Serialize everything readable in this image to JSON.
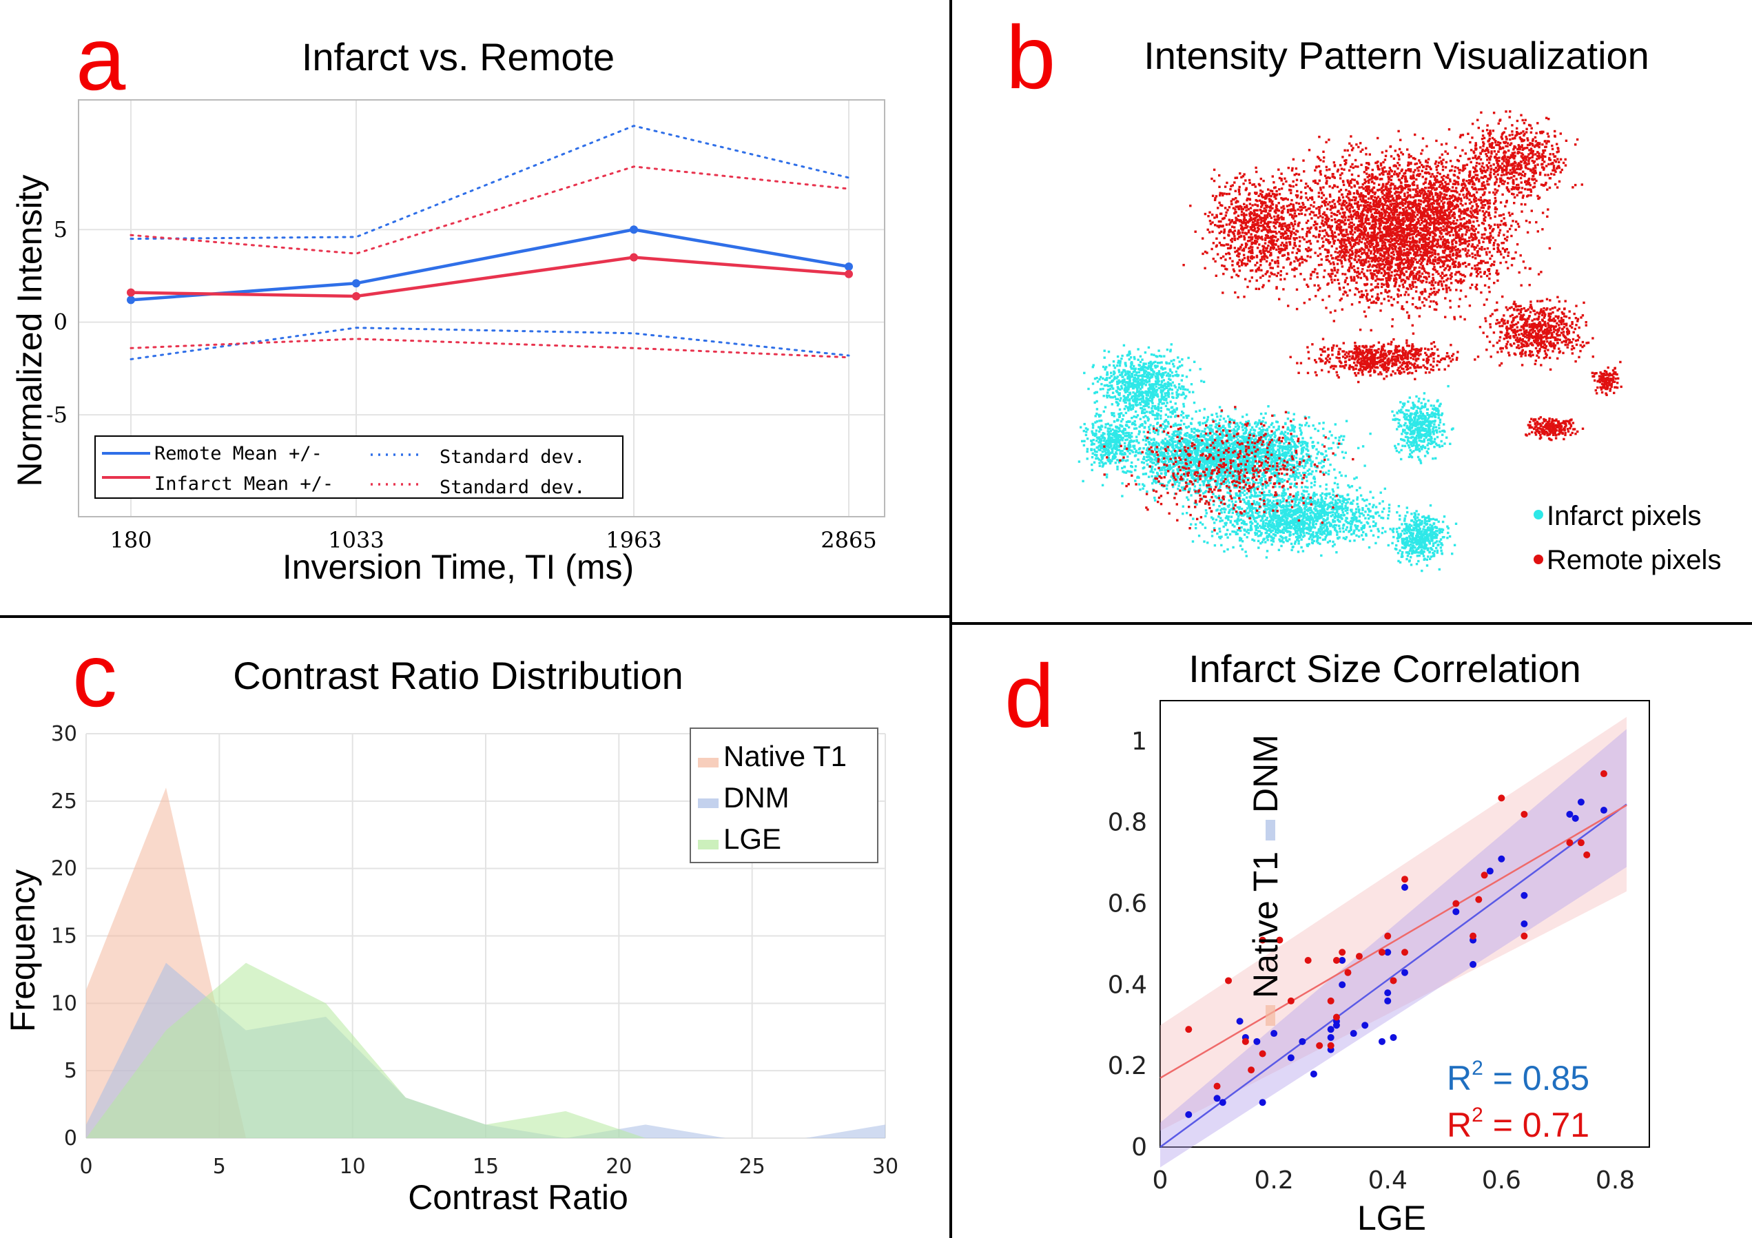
{
  "panel_letters": [
    "a",
    "b",
    "c",
    "d"
  ],
  "colors": {
    "remote_blue": "#2f6fe8",
    "infarct_red": "#e8334e",
    "tsne_infarct": "#2ee8e8",
    "tsne_remote": "#e01010",
    "native_t1": "#f4b9a0",
    "dnm": "#a9bde6",
    "lge": "#b7eaa0",
    "r2_blue": "#1f6fc0",
    "r2_red": "#e01010"
  },
  "chart_data": [
    {
      "panel": "a",
      "type": "line",
      "title": "Infarct vs. Remote",
      "xlabel": "Inversion Time, TI (ms)",
      "ylabel": "Normalized Intensity",
      "categories": [
        "180",
        "1033",
        "1963",
        "2865"
      ],
      "y_ticks": [
        "-5",
        "0",
        "5"
      ],
      "ylim": [
        -10.5,
        12
      ],
      "grid": true,
      "series": [
        {
          "name": "Remote Mean +/-",
          "style": "solid",
          "color": "#2f6fe8",
          "values": [
            1.2,
            2.1,
            5.0,
            3.0
          ]
        },
        {
          "name": "Infarct Mean +/-",
          "style": "solid",
          "color": "#e8334e",
          "values": [
            1.6,
            1.4,
            3.5,
            2.6
          ]
        },
        {
          "name": "Standard dev.",
          "style": "dotted",
          "color": "#2f6fe8",
          "values": [
            4.5,
            4.6,
            10.6,
            7.8
          ]
        },
        {
          "name": "",
          "style": "dotted",
          "color": "#2f6fe8",
          "values": [
            -2.0,
            -0.3,
            -0.6,
            -1.8
          ]
        },
        {
          "name": "Standard dev.",
          "style": "dotted",
          "color": "#e8334e",
          "values": [
            4.7,
            3.7,
            8.4,
            7.2
          ]
        },
        {
          "name": "",
          "style": "dotted",
          "color": "#e8334e",
          "values": [
            -1.4,
            -0.9,
            -1.4,
            -1.9
          ]
        }
      ],
      "legend": {
        "placement": "bottom-left",
        "entries": [
          "Remote Mean +/-",
          "Standard dev.",
          "Infarct Mean +/-",
          "Standard dev."
        ]
      }
    },
    {
      "panel": "b",
      "type": "scatter",
      "title": "Intensity Pattern Visualization",
      "legend": {
        "placement": "bottom-right",
        "entries": [
          "Infarct pixels",
          "Remote pixels"
        ]
      },
      "clusters": [
        {
          "name": "Remote pixels",
          "color": "#e01010",
          "region": "upper-right",
          "approx_points": 9000
        },
        {
          "name": "Infarct pixels",
          "color": "#2ee8e8",
          "region": "lower-left",
          "approx_points": 9000
        }
      ]
    },
    {
      "panel": "c",
      "type": "area",
      "title": "Contrast Ratio Distribution",
      "xlabel": "Contrast Ratio",
      "ylabel": "Frequency",
      "x": [
        0,
        3,
        6,
        9,
        12,
        15,
        18,
        21,
        24,
        27,
        30
      ],
      "x_ticks": [
        "0",
        "5",
        "10",
        "15",
        "20",
        "25",
        "30"
      ],
      "y_ticks": [
        "0",
        "5",
        "10",
        "15",
        "20",
        "25",
        "30"
      ],
      "xlim": [
        0,
        30
      ],
      "ylim": [
        0,
        30
      ],
      "grid": true,
      "series": [
        {
          "name": "Native T1",
          "color": "#f4b9a0",
          "values": [
            11,
            26,
            0,
            0,
            0,
            0,
            0,
            0,
            0,
            0,
            0
          ]
        },
        {
          "name": "DNM",
          "color": "#a9bde6",
          "values": [
            1,
            13,
            8,
            9,
            3,
            1,
            0,
            1,
            0,
            0,
            1
          ]
        },
        {
          "name": "LGE",
          "color": "#b7eaa0",
          "values": [
            0,
            8,
            13,
            10,
            3,
            1,
            2,
            0,
            0,
            0,
            0
          ]
        }
      ],
      "legend": {
        "placement": "top-right",
        "entries": [
          "Native T1",
          "DNM",
          "LGE"
        ]
      }
    },
    {
      "panel": "d",
      "type": "scatter",
      "title": "Infarct Size Correlation",
      "xlabel": "LGE",
      "ylabel_parts": [
        "Native T1",
        "DNM"
      ],
      "x_ticks": [
        "0",
        "0.2",
        "0.4",
        "0.6",
        "0.8"
      ],
      "y_ticks": [
        "0",
        "0.2",
        "0.4",
        "0.6",
        "0.8",
        "1"
      ],
      "xlim": [
        0,
        0.86
      ],
      "ylim": [
        0,
        1.1
      ],
      "annotations": [
        {
          "label": "R",
          "sup": "2",
          "value": " = 0.85",
          "color": "#1f6fc0"
        },
        {
          "label": "R",
          "sup": "2",
          "value": " = 0.71",
          "color": "#e01010"
        }
      ],
      "series": [
        {
          "name": "DNM",
          "color": "#1010e0",
          "fit": {
            "intercept": 0.0,
            "slope": 1.03
          },
          "band": {
            "low_at_0": -0.05,
            "high_at_0": 0.06,
            "low_at_max": 0.69,
            "high_at_max": 1.03
          },
          "points": [
            [
              0.05,
              0.08
            ],
            [
              0.1,
              0.12
            ],
            [
              0.11,
              0.11
            ],
            [
              0.14,
              0.31
            ],
            [
              0.15,
              0.27
            ],
            [
              0.17,
              0.26
            ],
            [
              0.18,
              0.11
            ],
            [
              0.2,
              0.28
            ],
            [
              0.23,
              0.22
            ],
            [
              0.25,
              0.26
            ],
            [
              0.27,
              0.18
            ],
            [
              0.3,
              0.24
            ],
            [
              0.3,
              0.27
            ],
            [
              0.3,
              0.29
            ],
            [
              0.31,
              0.3
            ],
            [
              0.31,
              0.31
            ],
            [
              0.32,
              0.46
            ],
            [
              0.32,
              0.4
            ],
            [
              0.34,
              0.28
            ],
            [
              0.36,
              0.3
            ],
            [
              0.39,
              0.26
            ],
            [
              0.4,
              0.48
            ],
            [
              0.4,
              0.38
            ],
            [
              0.4,
              0.36
            ],
            [
              0.41,
              0.27
            ],
            [
              0.43,
              0.64
            ],
            [
              0.43,
              0.43
            ],
            [
              0.52,
              0.58
            ],
            [
              0.55,
              0.51
            ],
            [
              0.55,
              0.45
            ],
            [
              0.58,
              0.68
            ],
            [
              0.6,
              0.71
            ],
            [
              0.64,
              0.62
            ],
            [
              0.64,
              0.55
            ],
            [
              0.72,
              0.82
            ],
            [
              0.73,
              0.81
            ],
            [
              0.74,
              0.85
            ],
            [
              0.78,
              0.83
            ]
          ]
        },
        {
          "name": "Native T1",
          "color": "#e01010",
          "fit": {
            "intercept": 0.17,
            "slope": 0.82
          },
          "band": {
            "low_at_0": 0.04,
            "high_at_0": 0.3,
            "low_at_max": 0.63,
            "high_at_max": 1.06
          },
          "points": [
            [
              0.05,
              0.29
            ],
            [
              0.1,
              0.15
            ],
            [
              0.12,
              0.41
            ],
            [
              0.15,
              0.26
            ],
            [
              0.16,
              0.19
            ],
            [
              0.18,
              0.51
            ],
            [
              0.18,
              0.23
            ],
            [
              0.21,
              0.51
            ],
            [
              0.23,
              0.36
            ],
            [
              0.26,
              0.46
            ],
            [
              0.28,
              0.25
            ],
            [
              0.3,
              0.25
            ],
            [
              0.3,
              0.36
            ],
            [
              0.31,
              0.32
            ],
            [
              0.31,
              0.46
            ],
            [
              0.32,
              0.48
            ],
            [
              0.33,
              0.43
            ],
            [
              0.35,
              0.47
            ],
            [
              0.39,
              0.48
            ],
            [
              0.4,
              0.52
            ],
            [
              0.41,
              0.41
            ],
            [
              0.43,
              0.66
            ],
            [
              0.43,
              0.48
            ],
            [
              0.52,
              0.6
            ],
            [
              0.55,
              0.52
            ],
            [
              0.56,
              0.61
            ],
            [
              0.57,
              0.67
            ],
            [
              0.6,
              0.86
            ],
            [
              0.64,
              0.82
            ],
            [
              0.64,
              0.52
            ],
            [
              0.72,
              0.75
            ],
            [
              0.74,
              0.75
            ],
            [
              0.75,
              0.72
            ],
            [
              0.78,
              0.92
            ]
          ]
        }
      ]
    }
  ]
}
